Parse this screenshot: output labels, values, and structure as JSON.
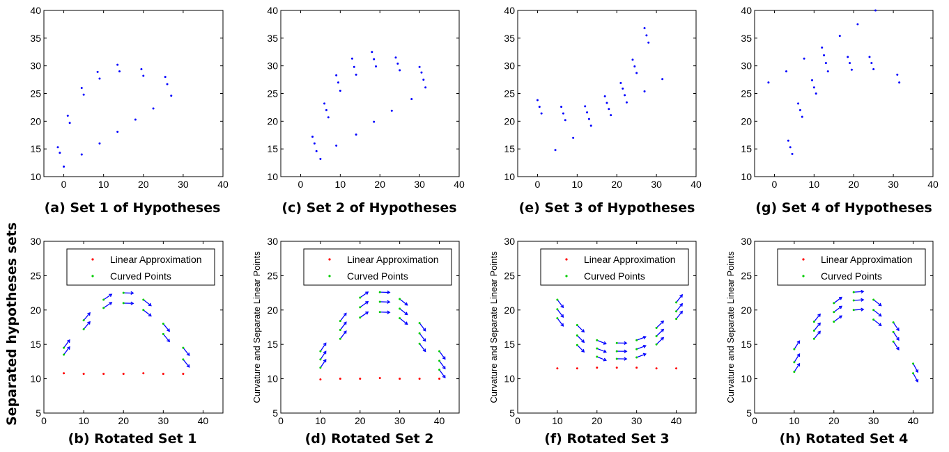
{
  "figure": {
    "row_label": "Separated hypotheses sets",
    "colors": {
      "hypothesis": "#0000ff",
      "linear": "#ff0000",
      "curved": "#00cc00",
      "arrow": "#0000ff",
      "axis": "#000000"
    }
  },
  "chart_data": [
    {
      "id": "a",
      "type": "scatter",
      "caption": "(a) Set 1 of Hypotheses",
      "xlim": [
        -5,
        40
      ],
      "ylim": [
        10,
        40
      ],
      "xticks": [
        0,
        10,
        20,
        30,
        40
      ],
      "yticks": [
        10,
        15,
        20,
        25,
        30,
        35,
        40
      ],
      "ylabel": "",
      "legend": null,
      "series": [
        {
          "points": [
            [
              -1.5,
              15.3
            ],
            [
              -1,
              14.3
            ],
            [
              0,
              11.8
            ],
            [
              1,
              21
            ],
            [
              1.5,
              19.7
            ],
            [
              4.5,
              26
            ],
            [
              5,
              24.8
            ],
            [
              4.5,
              14
            ],
            [
              8.5,
              28.9
            ],
            [
              9,
              27.7
            ],
            [
              9,
              16
            ],
            [
              13.5,
              30.2
            ],
            [
              14,
              29
            ],
            [
              13.5,
              18.1
            ],
            [
              19.5,
              29.4
            ],
            [
              20,
              28.2
            ],
            [
              18,
              20.3
            ],
            [
              22.5,
              22.3
            ],
            [
              25.5,
              28
            ],
            [
              26,
              26.7
            ],
            [
              27,
              24.6
            ]
          ]
        }
      ]
    },
    {
      "id": "c",
      "type": "scatter",
      "caption": "(c) Set 2 of Hypotheses",
      "xlim": [
        -5,
        40
      ],
      "ylim": [
        10,
        40
      ],
      "xticks": [
        0,
        10,
        20,
        30,
        40
      ],
      "yticks": [
        10,
        15,
        20,
        25,
        30,
        35,
        40
      ],
      "ylabel": "",
      "legend": null,
      "series": [
        {
          "points": [
            [
              3,
              17.2
            ],
            [
              3.5,
              16
            ],
            [
              4,
              14.6
            ],
            [
              5,
              13.2
            ],
            [
              6,
              23.2
            ],
            [
              6.5,
              22
            ],
            [
              7,
              20.7
            ],
            [
              9,
              28.3
            ],
            [
              9.5,
              27
            ],
            [
              10,
              25.5
            ],
            [
              9,
              15.6
            ],
            [
              13,
              31.3
            ],
            [
              13.5,
              29.8
            ],
            [
              14,
              28.4
            ],
            [
              14,
              17.6
            ],
            [
              18,
              32.5
            ],
            [
              18.5,
              31.2
            ],
            [
              19,
              29.9
            ],
            [
              18.5,
              19.9
            ],
            [
              24,
              31.5
            ],
            [
              24.5,
              30.4
            ],
            [
              25,
              29.2
            ],
            [
              23,
              21.9
            ],
            [
              30,
              29.8
            ],
            [
              30.5,
              28.8
            ],
            [
              31,
              27.5
            ],
            [
              31.5,
              26.1
            ],
            [
              28,
              24
            ]
          ]
        }
      ]
    },
    {
      "id": "e",
      "type": "scatter",
      "caption": "(e) Set 3 of Hypotheses",
      "xlim": [
        -5,
        40
      ],
      "ylim": [
        10,
        40
      ],
      "xticks": [
        0,
        10,
        20,
        30,
        40
      ],
      "yticks": [
        10,
        15,
        20,
        25,
        30,
        35,
        40
      ],
      "ylabel": "",
      "legend": null,
      "series": [
        {
          "points": [
            [
              0,
              23.8
            ],
            [
              0.5,
              22.6
            ],
            [
              1,
              21.4
            ],
            [
              4.5,
              14.8
            ],
            [
              6,
              22.6
            ],
            [
              6.5,
              21.4
            ],
            [
              7,
              20.2
            ],
            [
              9,
              17
            ],
            [
              12,
              22.7
            ],
            [
              12.5,
              21.6
            ],
            [
              13,
              20.4
            ],
            [
              13.5,
              19.2
            ],
            [
              17,
              24.5
            ],
            [
              17.5,
              23.3
            ],
            [
              18,
              22.2
            ],
            [
              18.5,
              21.1
            ],
            [
              21,
              26.9
            ],
            [
              21.5,
              25.9
            ],
            [
              22,
              24.7
            ],
            [
              22.5,
              23.4
            ],
            [
              24,
              31.1
            ],
            [
              24.5,
              29.9
            ],
            [
              25,
              28.7
            ],
            [
              27,
              25.4
            ],
            [
              27,
              36.8
            ],
            [
              27.5,
              35.5
            ],
            [
              28,
              34.2
            ],
            [
              31.5,
              27.6
            ]
          ]
        }
      ]
    },
    {
      "id": "g",
      "type": "scatter",
      "caption": "(g) Set 4 of Hypotheses",
      "xlim": [
        -5,
        40
      ],
      "ylim": [
        10,
        40
      ],
      "xticks": [
        0,
        10,
        20,
        30,
        40
      ],
      "yticks": [
        10,
        15,
        20,
        25,
        30,
        35,
        40
      ],
      "ylabel": "",
      "legend": null,
      "series": [
        {
          "points": [
            [
              -1.5,
              27
            ],
            [
              3,
              29
            ],
            [
              3.5,
              16.5
            ],
            [
              4,
              15.3
            ],
            [
              4.5,
              14.1
            ],
            [
              6,
              23.2
            ],
            [
              6.5,
              22
            ],
            [
              7,
              20.8
            ],
            [
              7.5,
              31.3
            ],
            [
              9.5,
              27.4
            ],
            [
              10,
              26.1
            ],
            [
              10.5,
              25
            ],
            [
              12,
              33.3
            ],
            [
              12.5,
              31.9
            ],
            [
              13,
              30.5
            ],
            [
              13.5,
              29
            ],
            [
              16.5,
              35.4
            ],
            [
              18.5,
              31.6
            ],
            [
              19,
              30.5
            ],
            [
              19.5,
              29.3
            ],
            [
              21,
              37.5
            ],
            [
              24,
              31.6
            ],
            [
              24.5,
              30.5
            ],
            [
              25,
              29.4
            ],
            [
              25.5,
              40
            ],
            [
              31,
              28.4
            ],
            [
              31.5,
              27
            ]
          ]
        }
      ]
    },
    {
      "id": "b",
      "type": "scatter",
      "caption": "(b) Rotated Set 1",
      "xlim": [
        0,
        45
      ],
      "ylim": [
        5,
        30
      ],
      "xticks": [
        0,
        10,
        20,
        30,
        40
      ],
      "yticks": [
        5,
        10,
        15,
        20,
        25,
        30
      ],
      "ylabel": "",
      "legend": [
        "Linear Approximation",
        "Curved Points"
      ],
      "series": [
        {
          "name": "Linear Approximation",
          "points": [
            [
              5,
              10.8
            ],
            [
              10,
              10.7
            ],
            [
              15,
              10.7
            ],
            [
              20,
              10.7
            ],
            [
              25,
              10.8
            ],
            [
              30,
              10.7
            ],
            [
              35,
              10.7
            ]
          ]
        },
        {
          "name": "Curved Points",
          "points": [
            [
              5,
              14.5
            ],
            [
              5,
              13.5
            ],
            [
              10,
              18.5
            ],
            [
              10,
              17.2
            ],
            [
              15,
              21.5
            ],
            [
              15,
              20.3
            ],
            [
              20,
              22.5
            ],
            [
              20,
              21
            ],
            [
              25,
              21.5
            ],
            [
              25,
              20
            ],
            [
              30,
              18
            ],
            [
              30,
              16.5
            ],
            [
              35,
              14.5
            ],
            [
              35,
              12.8
            ]
          ]
        }
      ]
    },
    {
      "id": "d",
      "type": "scatter",
      "caption": "(d) Rotated Set 2",
      "xlim": [
        0,
        45
      ],
      "ylim": [
        5,
        30
      ],
      "xticks": [
        0,
        10,
        20,
        30,
        40
      ],
      "yticks": [
        5,
        10,
        15,
        20,
        25,
        30
      ],
      "ylabel": "Curvature and Separate Linear Points",
      "legend": [
        "Linear Approximation",
        "Curved Points"
      ],
      "series": [
        {
          "name": "Linear Approximation",
          "points": [
            [
              10,
              9.9
            ],
            [
              15,
              10
            ],
            [
              20,
              10
            ],
            [
              25,
              10.1
            ],
            [
              30,
              10
            ],
            [
              35,
              10
            ],
            [
              40,
              10
            ]
          ]
        },
        {
          "name": "Curved Points",
          "points": [
            [
              10,
              14
            ],
            [
              10,
              12.8
            ],
            [
              10,
              11.6
            ],
            [
              15,
              18.4
            ],
            [
              15,
              17.1
            ],
            [
              15,
              15.8
            ],
            [
              20,
              21.8
            ],
            [
              20,
              20.4
            ],
            [
              20,
              18.9
            ],
            [
              25,
              22.6
            ],
            [
              25,
              21.2
            ],
            [
              25,
              19.7
            ],
            [
              30,
              21.6
            ],
            [
              30,
              20.2
            ],
            [
              30,
              18.8
            ],
            [
              35,
              18.1
            ],
            [
              35,
              16.6
            ],
            [
              35,
              15.1
            ],
            [
              40,
              14
            ],
            [
              40,
              12.6
            ],
            [
              40,
              11.3
            ]
          ]
        }
      ]
    },
    {
      "id": "f",
      "type": "scatter",
      "caption": "(f) Rotated Set 3",
      "xlim": [
        0,
        45
      ],
      "ylim": [
        5,
        30
      ],
      "xticks": [
        0,
        10,
        20,
        30,
        40
      ],
      "yticks": [
        5,
        10,
        15,
        20,
        25,
        30
      ],
      "ylabel": "Curvature and Separate Linear Points",
      "legend": [
        "Linear Approximation",
        "Curved Points"
      ],
      "series": [
        {
          "name": "Linear Approximation",
          "points": [
            [
              10,
              11.5
            ],
            [
              15,
              11.5
            ],
            [
              20,
              11.6
            ],
            [
              25,
              11.6
            ],
            [
              30,
              11.6
            ],
            [
              35,
              11.5
            ],
            [
              40,
              11.5
            ]
          ]
        },
        {
          "name": "Curved Points",
          "points": [
            [
              10,
              21.5
            ],
            [
              10,
              20.1
            ],
            [
              10,
              18.8
            ],
            [
              15,
              17.8
            ],
            [
              15,
              16.3
            ],
            [
              15,
              14.9
            ],
            [
              20,
              15.6
            ],
            [
              20,
              14.4
            ],
            [
              20,
              13.2
            ],
            [
              25,
              15.2
            ],
            [
              25,
              14
            ],
            [
              25,
              12.9
            ],
            [
              30,
              15.6
            ],
            [
              30,
              14.3
            ],
            [
              30,
              13.1
            ],
            [
              35,
              17.4
            ],
            [
              35,
              16.2
            ],
            [
              35,
              15
            ],
            [
              40,
              21.1
            ],
            [
              40,
              19.8
            ],
            [
              40,
              18.7
            ]
          ]
        }
      ]
    },
    {
      "id": "h",
      "type": "scatter",
      "caption": "(h) Rotated Set 4",
      "xlim": [
        0,
        45
      ],
      "ylim": [
        5,
        30
      ],
      "xticks": [
        0,
        10,
        20,
        30,
        40
      ],
      "yticks": [
        5,
        10,
        15,
        20,
        25,
        30
      ],
      "ylabel": "Curvature and Separate Linear Points",
      "legend": [
        "Linear Approximation",
        "Curved Points"
      ],
      "series": [
        {
          "name": "Linear Approximation",
          "points": []
        },
        {
          "name": "Curved Points",
          "points": [
            [
              10,
              14.3
            ],
            [
              10,
              12.4
            ],
            [
              10,
              11
            ],
            [
              15,
              18.3
            ],
            [
              15,
              17
            ],
            [
              15,
              15.8
            ],
            [
              20,
              21
            ],
            [
              20,
              19.7
            ],
            [
              20,
              18.3
            ],
            [
              25,
              22.6
            ],
            [
              25,
              21.4
            ],
            [
              25,
              20
            ],
            [
              30,
              21.5
            ],
            [
              30,
              20
            ],
            [
              30,
              18.6
            ],
            [
              35,
              18.2
            ],
            [
              35,
              16.8
            ],
            [
              35,
              15.4
            ],
            [
              40,
              12.2
            ],
            [
              40,
              10.8
            ]
          ]
        }
      ]
    }
  ]
}
